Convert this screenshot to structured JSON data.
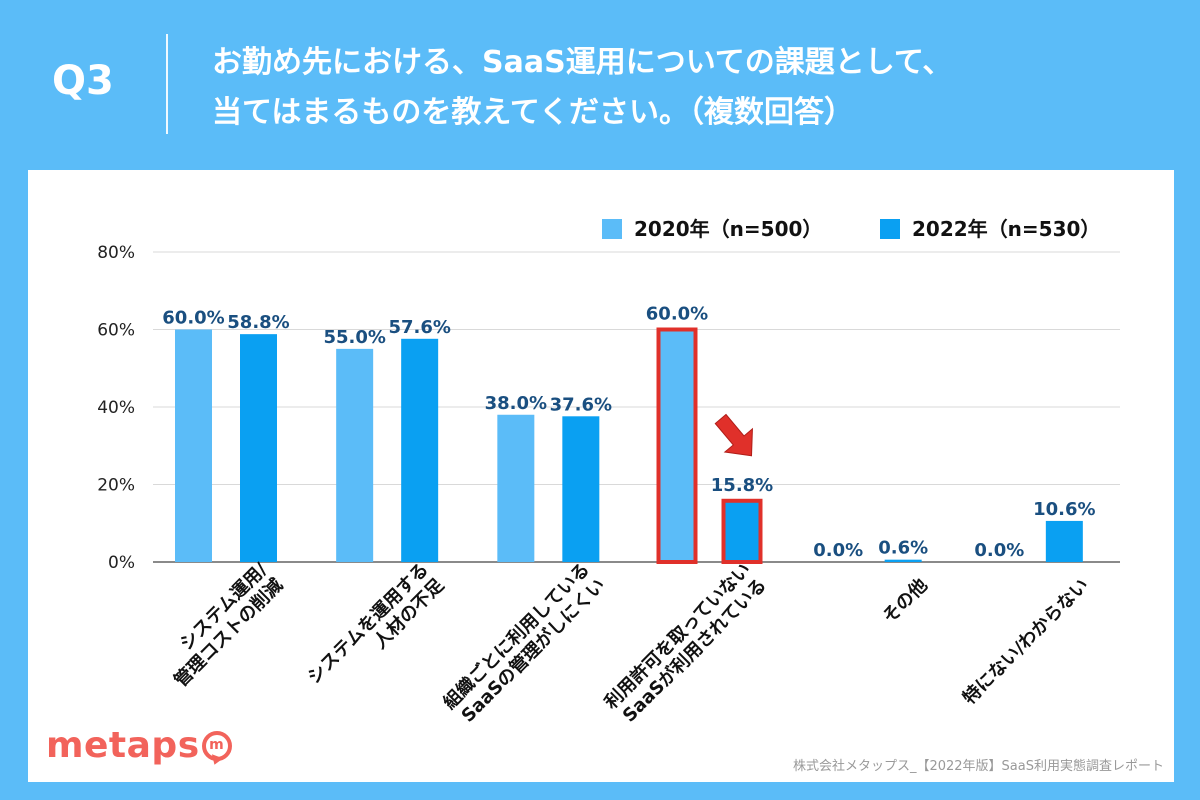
{
  "header": {
    "q_label": "Q3",
    "title_line1": "お勤め先における、SaaS運用についての課題として、",
    "title_line2": "当てはまるものを教えてください。（複数回答）"
  },
  "footer": {
    "logo_text": "metaps",
    "logo_icon_letter": "m",
    "source": "株式会社メタップス_【2022年版】SaaS利用実態調査レポート"
  },
  "colors": {
    "background": "#5bbcf8",
    "series_2020": "#5bbcf8",
    "series_2022": "#0aa0f2",
    "label_text": "#1a4f80",
    "highlight_border": "#e0302a",
    "arrow": "#e0302a"
  },
  "chart_data": {
    "type": "bar",
    "title": "",
    "ylabel": "",
    "xlabel": "",
    "ylim": [
      0,
      80
    ],
    "yticks": [
      "0%",
      "20%",
      "40%",
      "60%",
      "80%"
    ],
    "ytick_values": [
      0,
      20,
      40,
      60,
      80
    ],
    "grid": true,
    "legend_position": "top-right",
    "categories": [
      [
        "システム運用/",
        "管理コストの削減"
      ],
      [
        "システムを運用する",
        "人材の不足"
      ],
      [
        "組織ごとに利用している",
        "SaaSの管理がしにくい"
      ],
      [
        "利用許可を取っていない",
        "SaaSが利用されている"
      ],
      [
        "その他"
      ],
      [
        "特にない/わからない"
      ]
    ],
    "series": [
      {
        "name": "2020年（n=500）",
        "values": [
          60.0,
          55.0,
          38.0,
          60.0,
          0.0,
          0.0
        ],
        "labels": [
          "60.0%",
          "55.0%",
          "38.0%",
          "60.0%",
          "0.0%",
          "0.0%"
        ]
      },
      {
        "name": "2022年（n=530）",
        "values": [
          58.8,
          57.6,
          37.6,
          15.8,
          0.6,
          10.6
        ],
        "labels": [
          "58.8%",
          "57.6%",
          "37.6%",
          "15.8%",
          "0.6%",
          "10.6%"
        ]
      }
    ],
    "highlighted_category_index": 3,
    "annotation": "downward arrow pointing to 2022 value of category 4"
  }
}
